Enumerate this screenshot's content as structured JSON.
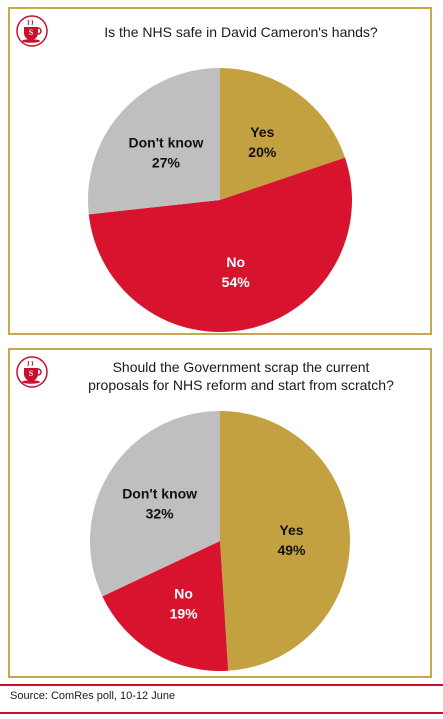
{
  "colors": {
    "yes": "#c3a140",
    "no": "#d7132e",
    "dont_know": "#bfbfbf",
    "border": "#c8a84a",
    "accent": "#c8102e"
  },
  "logo": {
    "icon": "teacup-logo-icon",
    "letter": "S"
  },
  "chart_data": [
    {
      "type": "pie",
      "title": "Is the NHS safe in David Cameron's hands?",
      "slices": [
        {
          "label": "Yes",
          "value": 20,
          "display": "20%"
        },
        {
          "label": "No",
          "value": 54,
          "display": "54%"
        },
        {
          "label": "Don't know",
          "value": 27,
          "display": "27%"
        }
      ]
    },
    {
      "type": "pie",
      "title_lines": [
        "Should the Government scrap the current",
        "proposals for NHS reform and start from scratch?"
      ],
      "slices": [
        {
          "label": "Yes",
          "value": 49,
          "display": "49%"
        },
        {
          "label": "No",
          "value": 19,
          "display": "19%"
        },
        {
          "label": "Don't know",
          "value": 32,
          "display": "32%"
        }
      ]
    }
  ],
  "source": "Source: ComRes poll, 10-12 June"
}
